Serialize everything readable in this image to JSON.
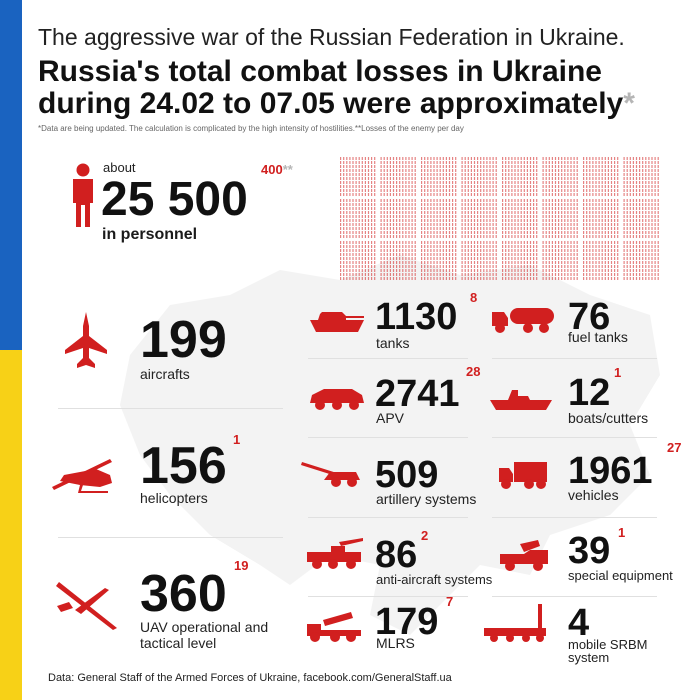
{
  "header": {
    "subtitle": "The aggressive war of the Russian Federation in Ukraine.",
    "title_line1": "Russia's total combat losses in Ukraine",
    "title_line2": "during 24.02 to 07.05 were approximately",
    "title_star": "*",
    "note": "*Data are being updated. The calculation is complicated by the high intensity of hostilities.**Losses of the enemy per day"
  },
  "personnel": {
    "prefix": "about",
    "value": "25 500",
    "delta": "400",
    "delta_mark": "**",
    "label": "in personnel"
  },
  "aircraft": {
    "value": "199",
    "label": "aircrafts"
  },
  "helicopters": {
    "value": "156",
    "delta": "1",
    "label": "helicopters"
  },
  "uav": {
    "value": "360",
    "delta": "19",
    "label_line1": "UAV operational and",
    "label_line2": "tactical level"
  },
  "tanks": {
    "value": "1130",
    "delta": "8",
    "label": "tanks"
  },
  "apv": {
    "value": "2741",
    "delta": "28",
    "label": "APV"
  },
  "artillery": {
    "value": "509",
    "label": "artillery systems"
  },
  "anti_aircraft": {
    "value": "86",
    "delta": "2",
    "label": "anti-aircraft systems"
  },
  "mlrs": {
    "value": "179",
    "delta": "7",
    "label": "MLRS"
  },
  "fuel_tanks": {
    "value": "76",
    "label": "fuel tanks"
  },
  "boats": {
    "value": "12",
    "delta": "1",
    "label": "boats/cutters"
  },
  "vehicles": {
    "value": "1961",
    "delta": "27",
    "label": "vehicles"
  },
  "special_equipment": {
    "value": "39",
    "delta": "1",
    "label": "special equipment"
  },
  "srbm": {
    "value": "4",
    "label_line1": "mobile SRBM",
    "label_line2": "system"
  },
  "footer": {
    "source": "Data: General Staff of the Armed Forces of Ukraine, facebook.com/GeneralStaff.ua"
  },
  "colors": {
    "accent": "#d11f1f",
    "flag_blue": "#1a63c0",
    "flag_yellow": "#f7d117"
  }
}
